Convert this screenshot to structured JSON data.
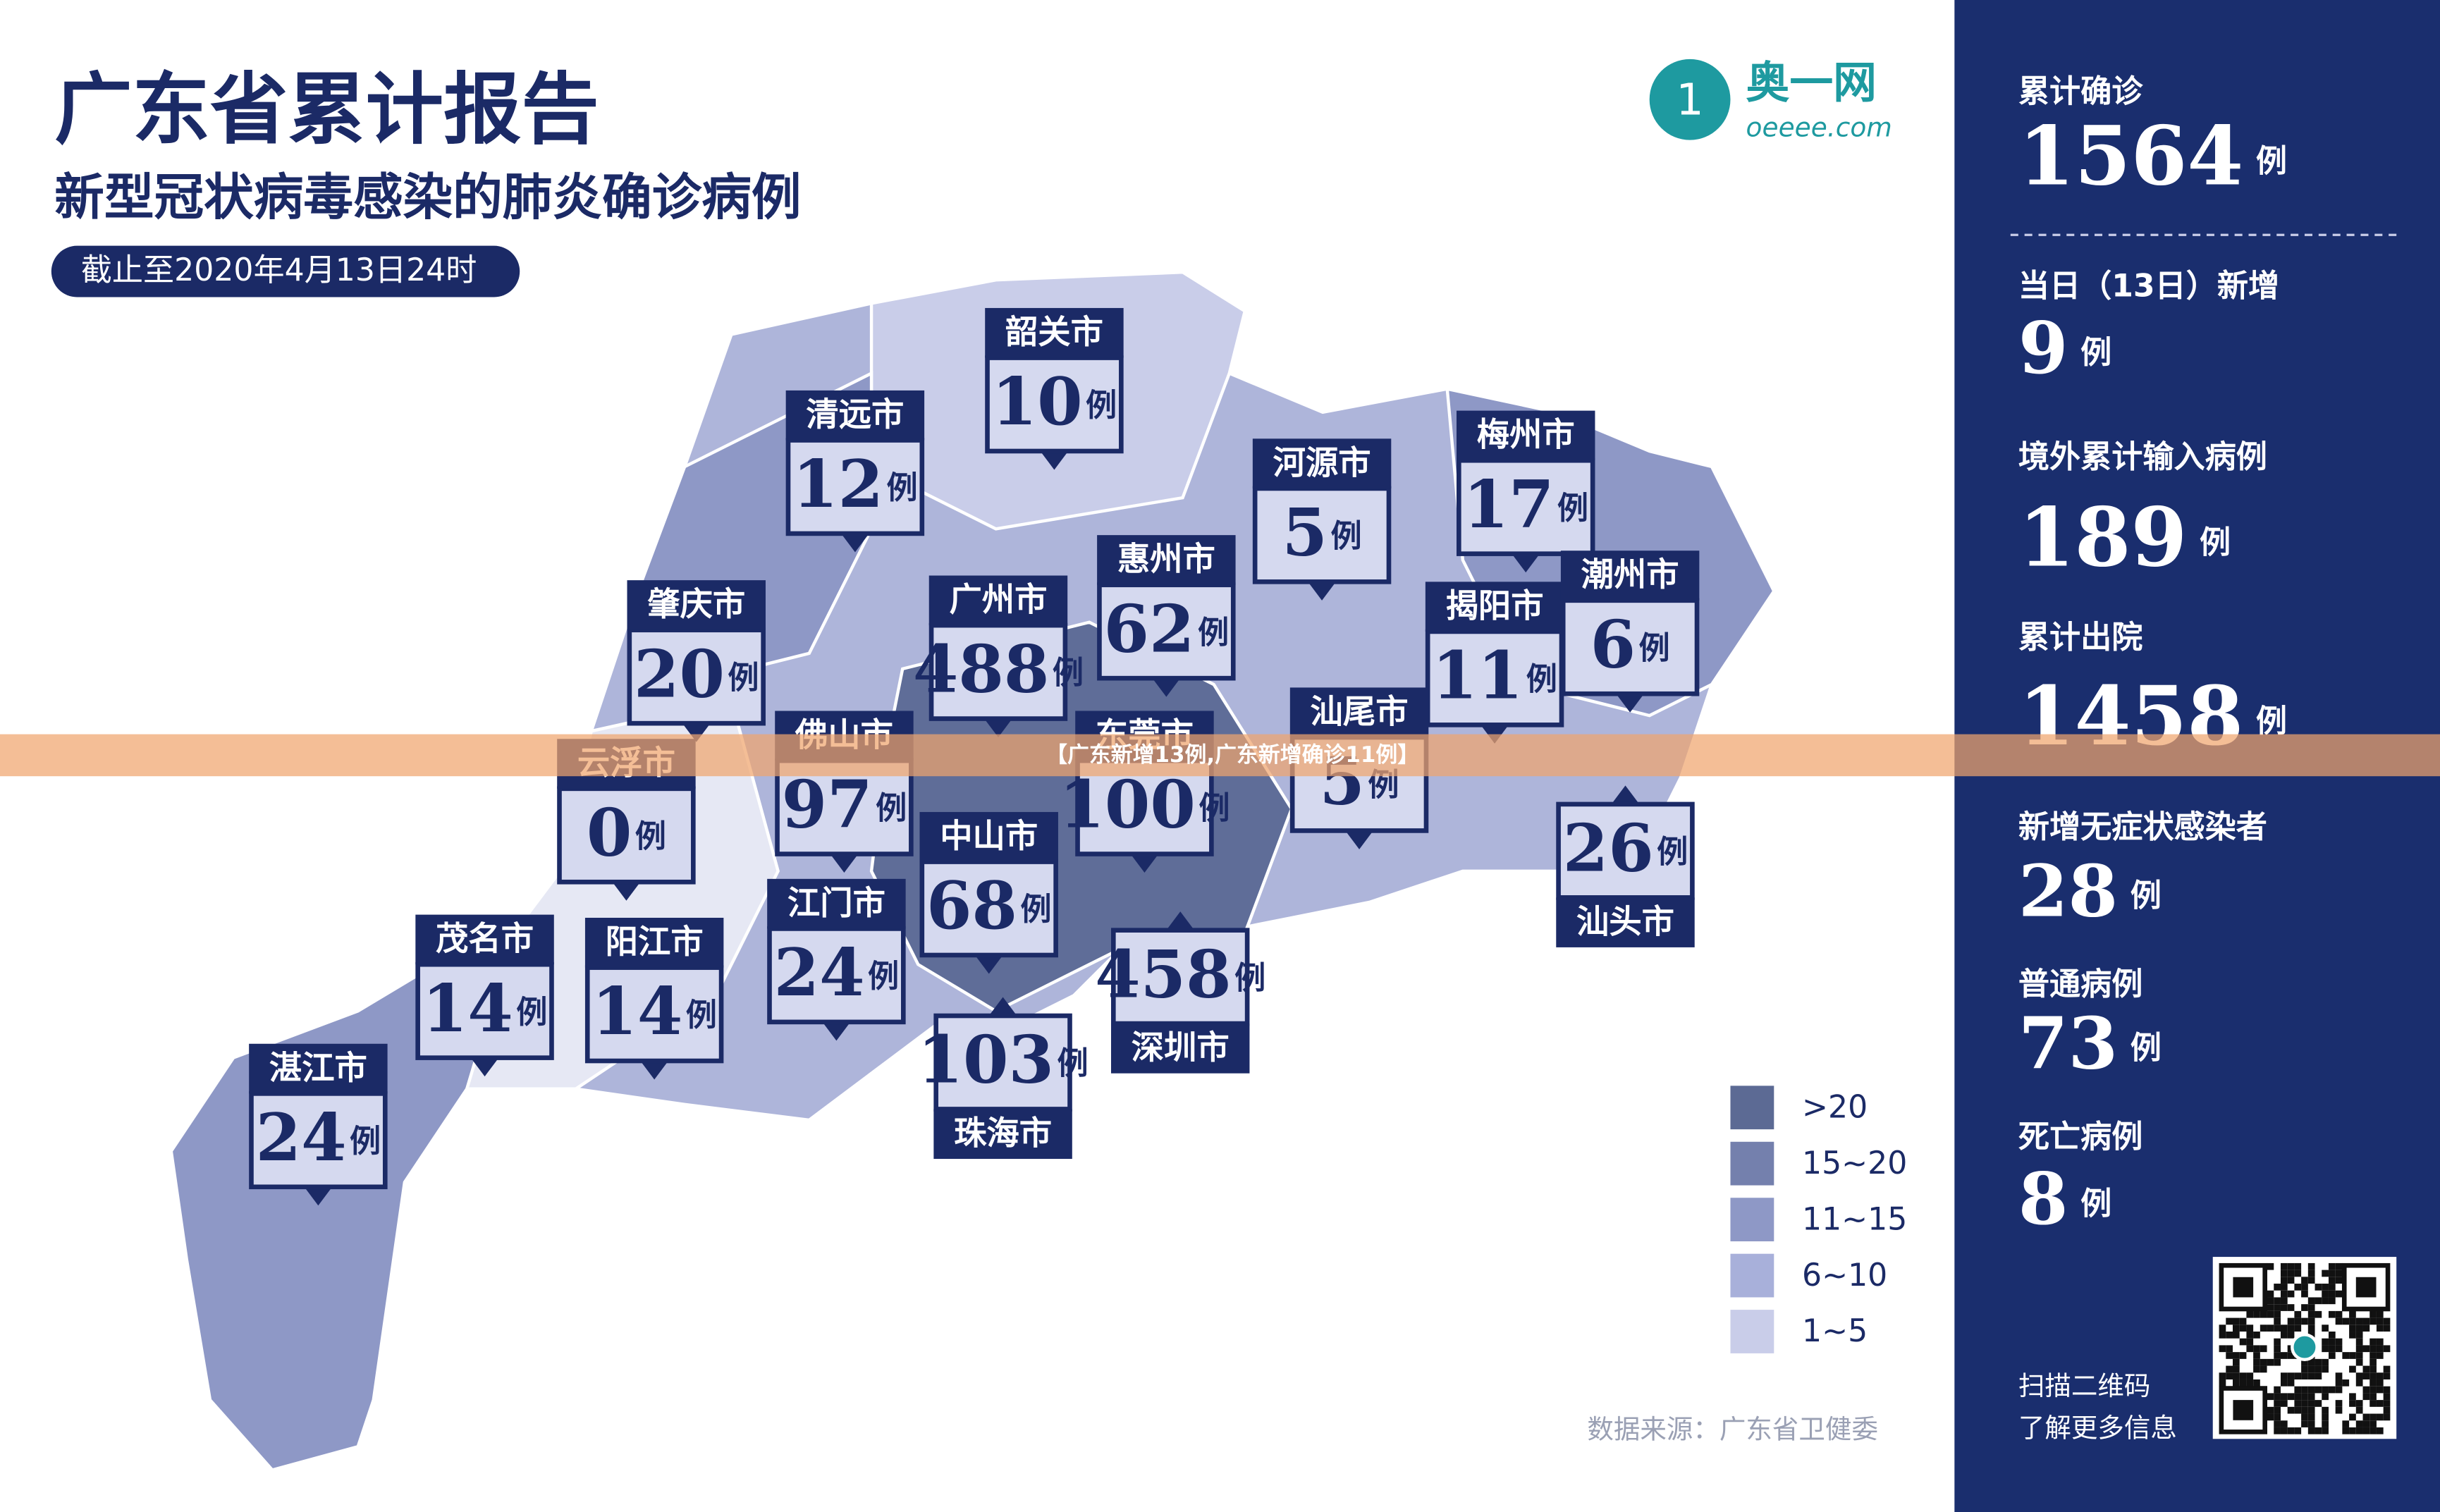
{
  "header": {
    "title": "广东省累计报告",
    "subtitle": "新型冠状病毒感染的肺炎确诊病例",
    "date": "截止至2020年4月13日24时"
  },
  "logo": {
    "name": "奥一网",
    "site": "oeeee.com"
  },
  "unit": "例",
  "cities": [
    {
      "name": "韶关市",
      "count": 10
    },
    {
      "name": "清远市",
      "count": 12
    },
    {
      "name": "河源市",
      "count": 5
    },
    {
      "name": "梅州市",
      "count": 17
    },
    {
      "name": "肇庆市",
      "count": 20
    },
    {
      "name": "广州市",
      "count": 488
    },
    {
      "name": "惠州市",
      "count": 62
    },
    {
      "name": "揭阳市",
      "count": 11
    },
    {
      "name": "潮州市",
      "count": 6
    },
    {
      "name": "汕尾市",
      "count": 5
    },
    {
      "name": "云浮市",
      "count": 0
    },
    {
      "name": "佛山市",
      "count": 97
    },
    {
      "name": "东莞市",
      "count": 100
    },
    {
      "name": "中山市",
      "count": 68
    },
    {
      "name": "江门市",
      "count": 24
    },
    {
      "name": "茂名市",
      "count": 14
    },
    {
      "name": "阳江市",
      "count": 14
    },
    {
      "name": "湛江市",
      "count": 24
    },
    {
      "name": "汕头市",
      "count": 26
    },
    {
      "name": "深圳市",
      "count": 458
    },
    {
      "name": "珠海市",
      "count": 103
    }
  ],
  "legend": [
    ">20",
    "15~20",
    "11~15",
    "6~10",
    "1~5"
  ],
  "source": "数据来源：广东省卫健委",
  "banner": "【广东新增13例,广东新增确诊11例】",
  "stats": [
    {
      "label": "累计确诊",
      "value": 1564
    },
    {
      "label": "当日（13日）新增",
      "value": 9
    },
    {
      "label": "境外累计输入病例",
      "value": 189
    },
    {
      "label": "累计出院",
      "value": 1458
    },
    {
      "label": "新增无症状感染者",
      "value": 28
    },
    {
      "label": "普通病例",
      "value": 73
    },
    {
      "label": "死亡病例",
      "value": 8
    }
  ],
  "qr": {
    "line1": "扫描二维码",
    "line2": "了解更多信息"
  }
}
